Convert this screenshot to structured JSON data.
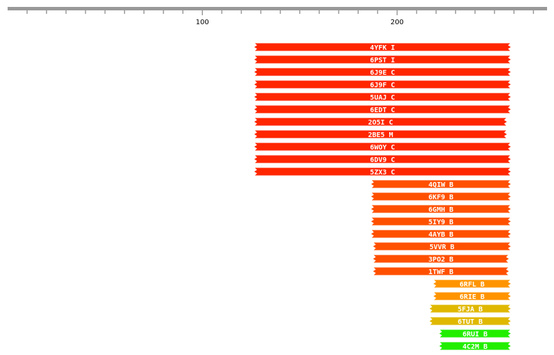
{
  "chart_data": {
    "type": "range-bar",
    "xlim": [
      0,
      277
    ],
    "xticks": [
      100,
      200
    ],
    "minor_xticks": [
      10,
      20,
      30,
      40,
      50,
      60,
      70,
      80,
      90,
      110,
      120,
      130,
      140,
      150,
      160,
      170,
      180,
      190,
      210,
      220,
      230,
      240,
      250,
      260,
      270
    ],
    "categories": [
      "4YFK_I",
      "6PST_I",
      "6J9E_C",
      "6J9F_C",
      "5UAJ_C",
      "6EDT_C",
      "2O5I_C",
      "2BE5_M",
      "6WOY_C",
      "6DV9_C",
      "5ZX3_C",
      "4QIW_B",
      "6KF9_B",
      "6GMH_B",
      "5IY9_B",
      "4AYB_B",
      "5VVR_B",
      "3PO2_B",
      "1TWF_B",
      "6RFL_B",
      "6RIE_B",
      "5FJA_B",
      "6TUT_B",
      "6RUI_B",
      "4C2M_B"
    ],
    "starts": [
      127,
      127,
      127,
      127,
      127,
      127,
      127,
      127,
      127,
      127,
      127,
      187,
      187,
      187,
      187,
      187,
      188,
      188,
      188,
      219,
      219,
      217,
      217,
      222,
      222
    ],
    "ends": [
      258,
      258,
      258,
      258,
      258,
      258,
      256,
      256,
      258,
      258,
      258,
      258,
      258,
      258,
      258,
      258,
      258,
      257,
      257,
      258,
      258,
      258,
      258,
      258,
      258
    ],
    "colors": [
      "#ff2600",
      "#ff2600",
      "#ff2600",
      "#ff2600",
      "#ff2600",
      "#ff2600",
      "#ff2600",
      "#ff2600",
      "#ff2600",
      "#ff2600",
      "#ff2600",
      "#ff5000",
      "#ff5000",
      "#ff5000",
      "#ff5000",
      "#ff5000",
      "#ff5000",
      "#ff5000",
      "#ff5000",
      "#ff9400",
      "#ff9400",
      "#e0b800",
      "#e0b800",
      "#22ee00",
      "#22ee00"
    ]
  }
}
